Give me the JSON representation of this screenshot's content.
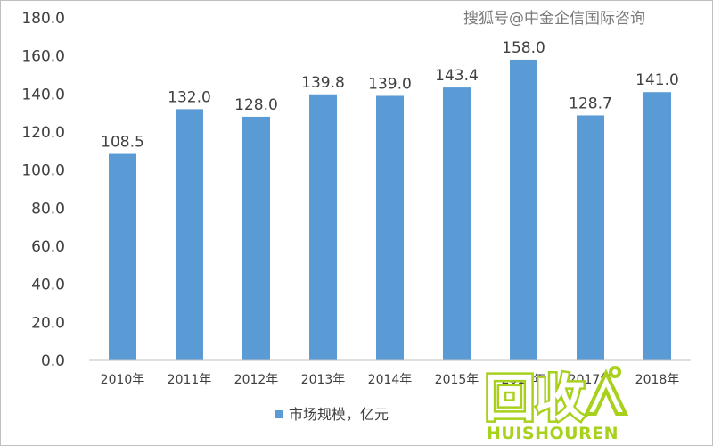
{
  "watermark": "搜狐号@中金企信国际咨询",
  "logo": {
    "main": "回收",
    "sub": "HUISHOUREN",
    "color": "#a8d11b"
  },
  "chart_data": {
    "type": "bar",
    "title": "",
    "xlabel": "",
    "ylabel": "",
    "categories": [
      "2010年",
      "2011年",
      "2012年",
      "2013年",
      "2014年",
      "2015年",
      "2016年",
      "2017年",
      "2018年"
    ],
    "series": [
      {
        "name": "市场规模，亿元",
        "values": [
          108.5,
          132.0,
          128.0,
          139.8,
          139.0,
          143.4,
          158.0,
          128.7,
          141.0
        ],
        "color": "#5b9bd5"
      }
    ],
    "ylim": [
      0,
      180
    ],
    "yticks": [
      "0.0",
      "20.0",
      "40.0",
      "60.0",
      "80.0",
      "100.0",
      "120.0",
      "140.0",
      "160.0",
      "180.0"
    ],
    "value_labels": [
      "108.5",
      "132.0",
      "128.0",
      "139.8",
      "139.0",
      "143.4",
      "158.0",
      "128.7",
      "141.0"
    ],
    "grid": false,
    "legend": "bottom"
  }
}
